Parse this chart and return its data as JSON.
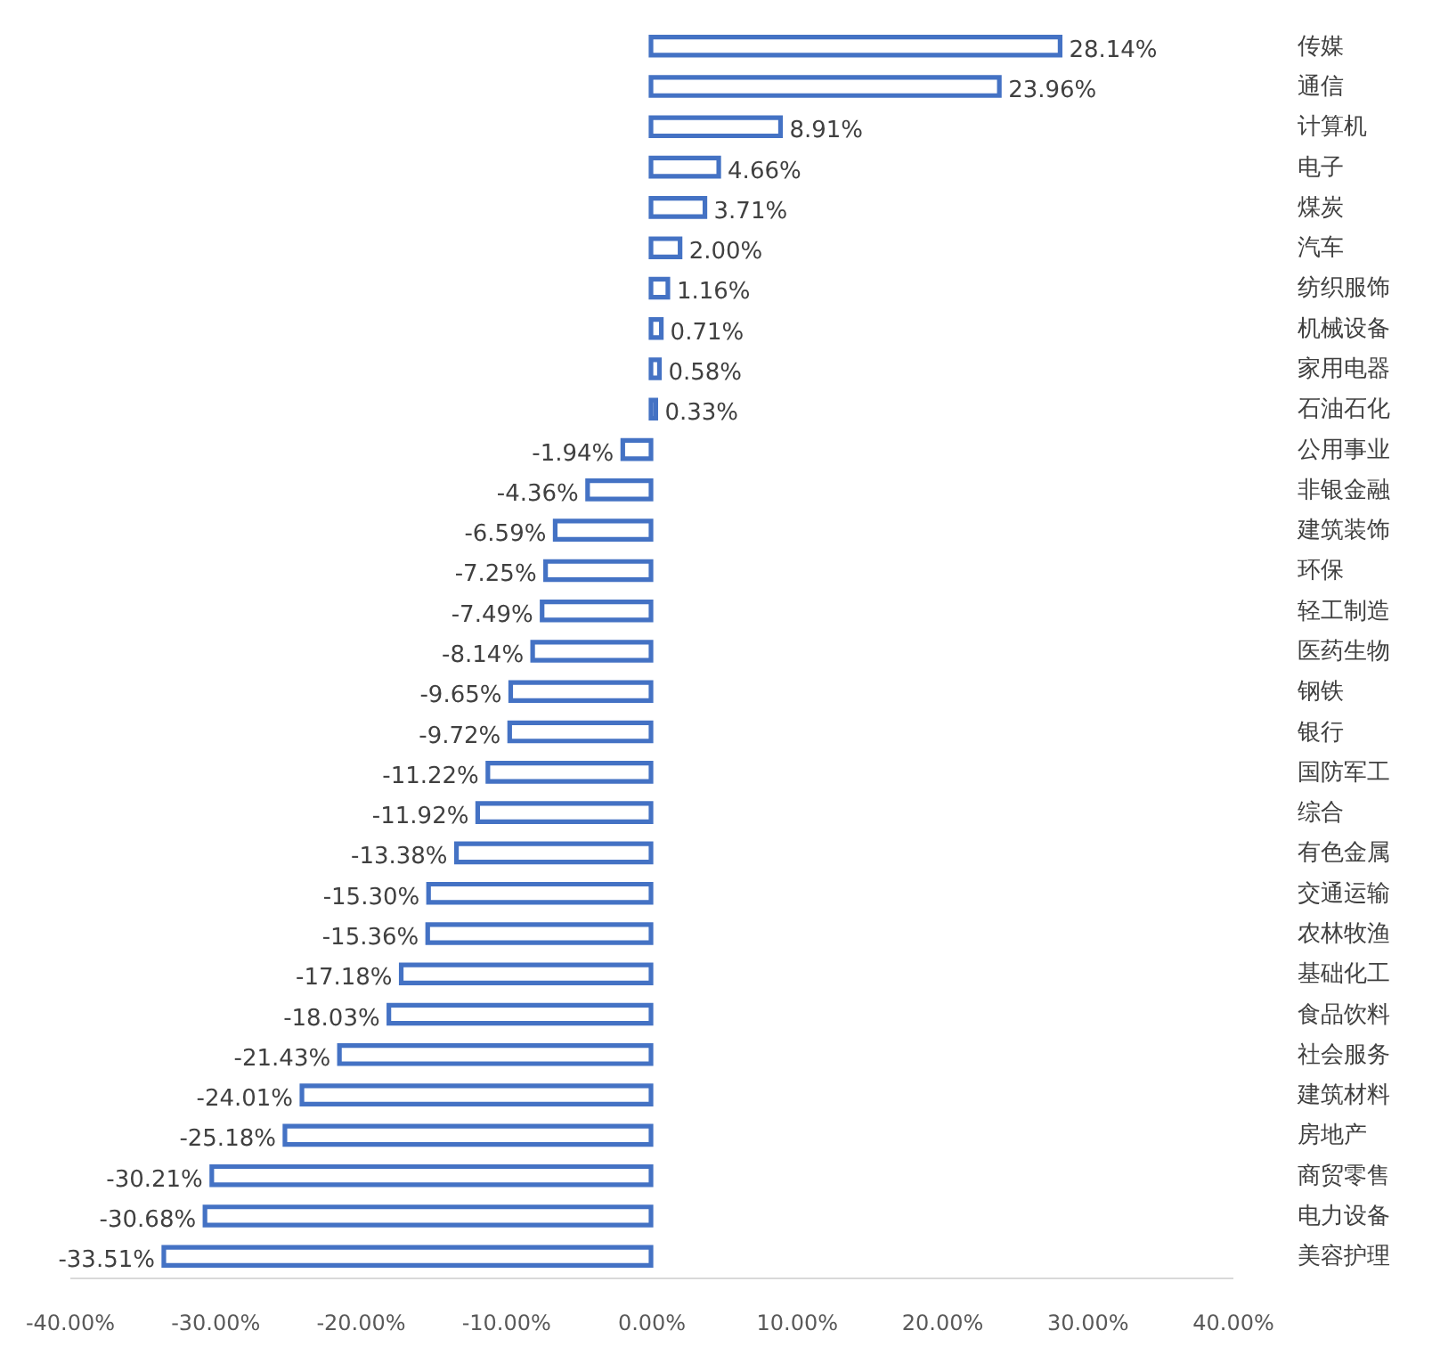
{
  "chart_data": {
    "type": "bar",
    "orientation": "horizontal",
    "categories": [
      "传媒",
      "通信",
      "计算机",
      "电子",
      "煤炭",
      "汽车",
      "纺织服饰",
      "机械设备",
      "家用电器",
      "石油石化",
      "公用事业",
      "非银金融",
      "建筑装饰",
      "环保",
      "轻工制造",
      "医药生物",
      "钢铁",
      "银行",
      "国防军工",
      "综合",
      "有色金属",
      "交通运输",
      "农林牧渔",
      "基础化工",
      "食品饮料",
      "社会服务",
      "建筑材料",
      "房地产",
      "商贸零售",
      "电力设备",
      "美容护理"
    ],
    "values": [
      28.14,
      23.96,
      8.91,
      4.66,
      3.71,
      2.0,
      1.16,
      0.71,
      0.58,
      0.33,
      -1.94,
      -4.36,
      -6.59,
      -7.25,
      -7.49,
      -8.14,
      -9.65,
      -9.72,
      -11.22,
      -11.92,
      -13.38,
      -15.3,
      -15.36,
      -17.18,
      -18.03,
      -21.43,
      -24.01,
      -25.18,
      -30.21,
      -30.68,
      -33.51
    ],
    "value_labels": [
      "28.14%",
      "23.96%",
      "8.91%",
      "4.66%",
      "3.71%",
      "2.00%",
      "1.16%",
      "0.71%",
      "0.58%",
      "0.33%",
      "-1.94%",
      "-4.36%",
      "-6.59%",
      "-7.25%",
      "-7.49%",
      "-8.14%",
      "-9.65%",
      "-9.72%",
      "-11.22%",
      "-11.92%",
      "-13.38%",
      "-15.30%",
      "-15.36%",
      "-17.18%",
      "-18.03%",
      "-21.43%",
      "-24.01%",
      "-25.18%",
      "-30.21%",
      "-30.68%",
      "-33.51%"
    ],
    "color": "#4472c4",
    "xlim": [
      -40,
      40
    ],
    "xticks": [
      {
        "value": -40,
        "label": "-40.00%"
      },
      {
        "value": -30,
        "label": "-30.00%"
      },
      {
        "value": -20,
        "label": "-20.00%"
      },
      {
        "value": -10,
        "label": "-10.00%"
      },
      {
        "value": 0,
        "label": "0.00%"
      },
      {
        "value": 10,
        "label": "10.00%"
      },
      {
        "value": 20,
        "label": "20.00%"
      },
      {
        "value": 30,
        "label": "30.00%"
      },
      {
        "value": 40,
        "label": "40.00%"
      }
    ],
    "grid": false
  }
}
